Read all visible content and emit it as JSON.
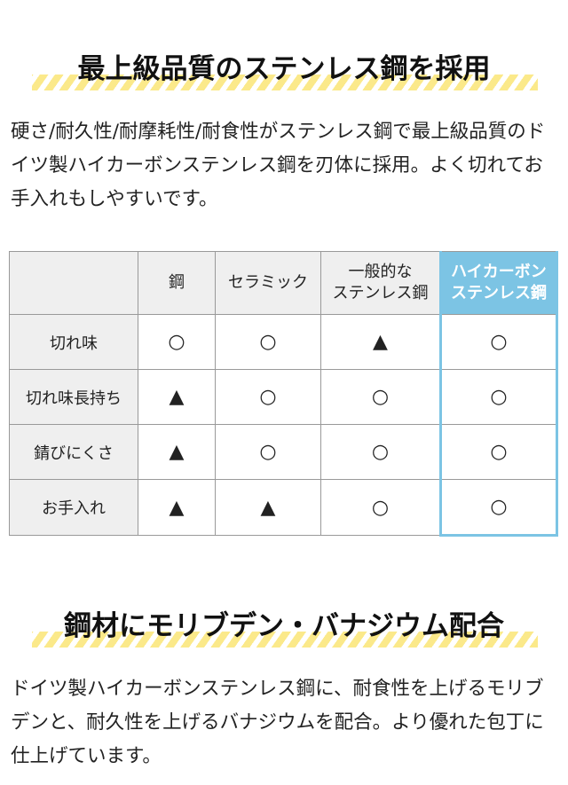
{
  "section1": {
    "heading": "最上級品質のステンレス鋼を採用",
    "body": "硬さ/耐久性/耐摩耗性/耐食性がステンレス鋼で最上級品質のドイツ製ハイカーボンステンレス鋼を刃体に採用。よく切れてお手入れもしやすいです。"
  },
  "table": {
    "headers": [
      "",
      "鋼",
      "セラミック",
      "一般的な\nステンレス鋼",
      "ハイカーボン\nステンレス鋼"
    ],
    "rows": [
      {
        "label": "切れ味",
        "values": [
          "○",
          "○",
          "▲",
          "○"
        ]
      },
      {
        "label": "切れ味長持ち",
        "values": [
          "▲",
          "○",
          "○",
          "○"
        ]
      },
      {
        "label": "錆びにくさ",
        "values": [
          "▲",
          "○",
          "○",
          "○"
        ]
      },
      {
        "label": "お手入れ",
        "values": [
          "▲",
          "▲",
          "○",
          "○"
        ]
      }
    ],
    "highlight_color": "#7cc4e4"
  },
  "section2": {
    "heading": "鋼材にモリブデン・バナジウム配合",
    "body": "ドイツ製ハイカーボンステンレス鋼に、耐食性を上げるモリブデンと、耐久性を上げるバナジウムを配合。より優れた包丁に仕上げています。"
  }
}
